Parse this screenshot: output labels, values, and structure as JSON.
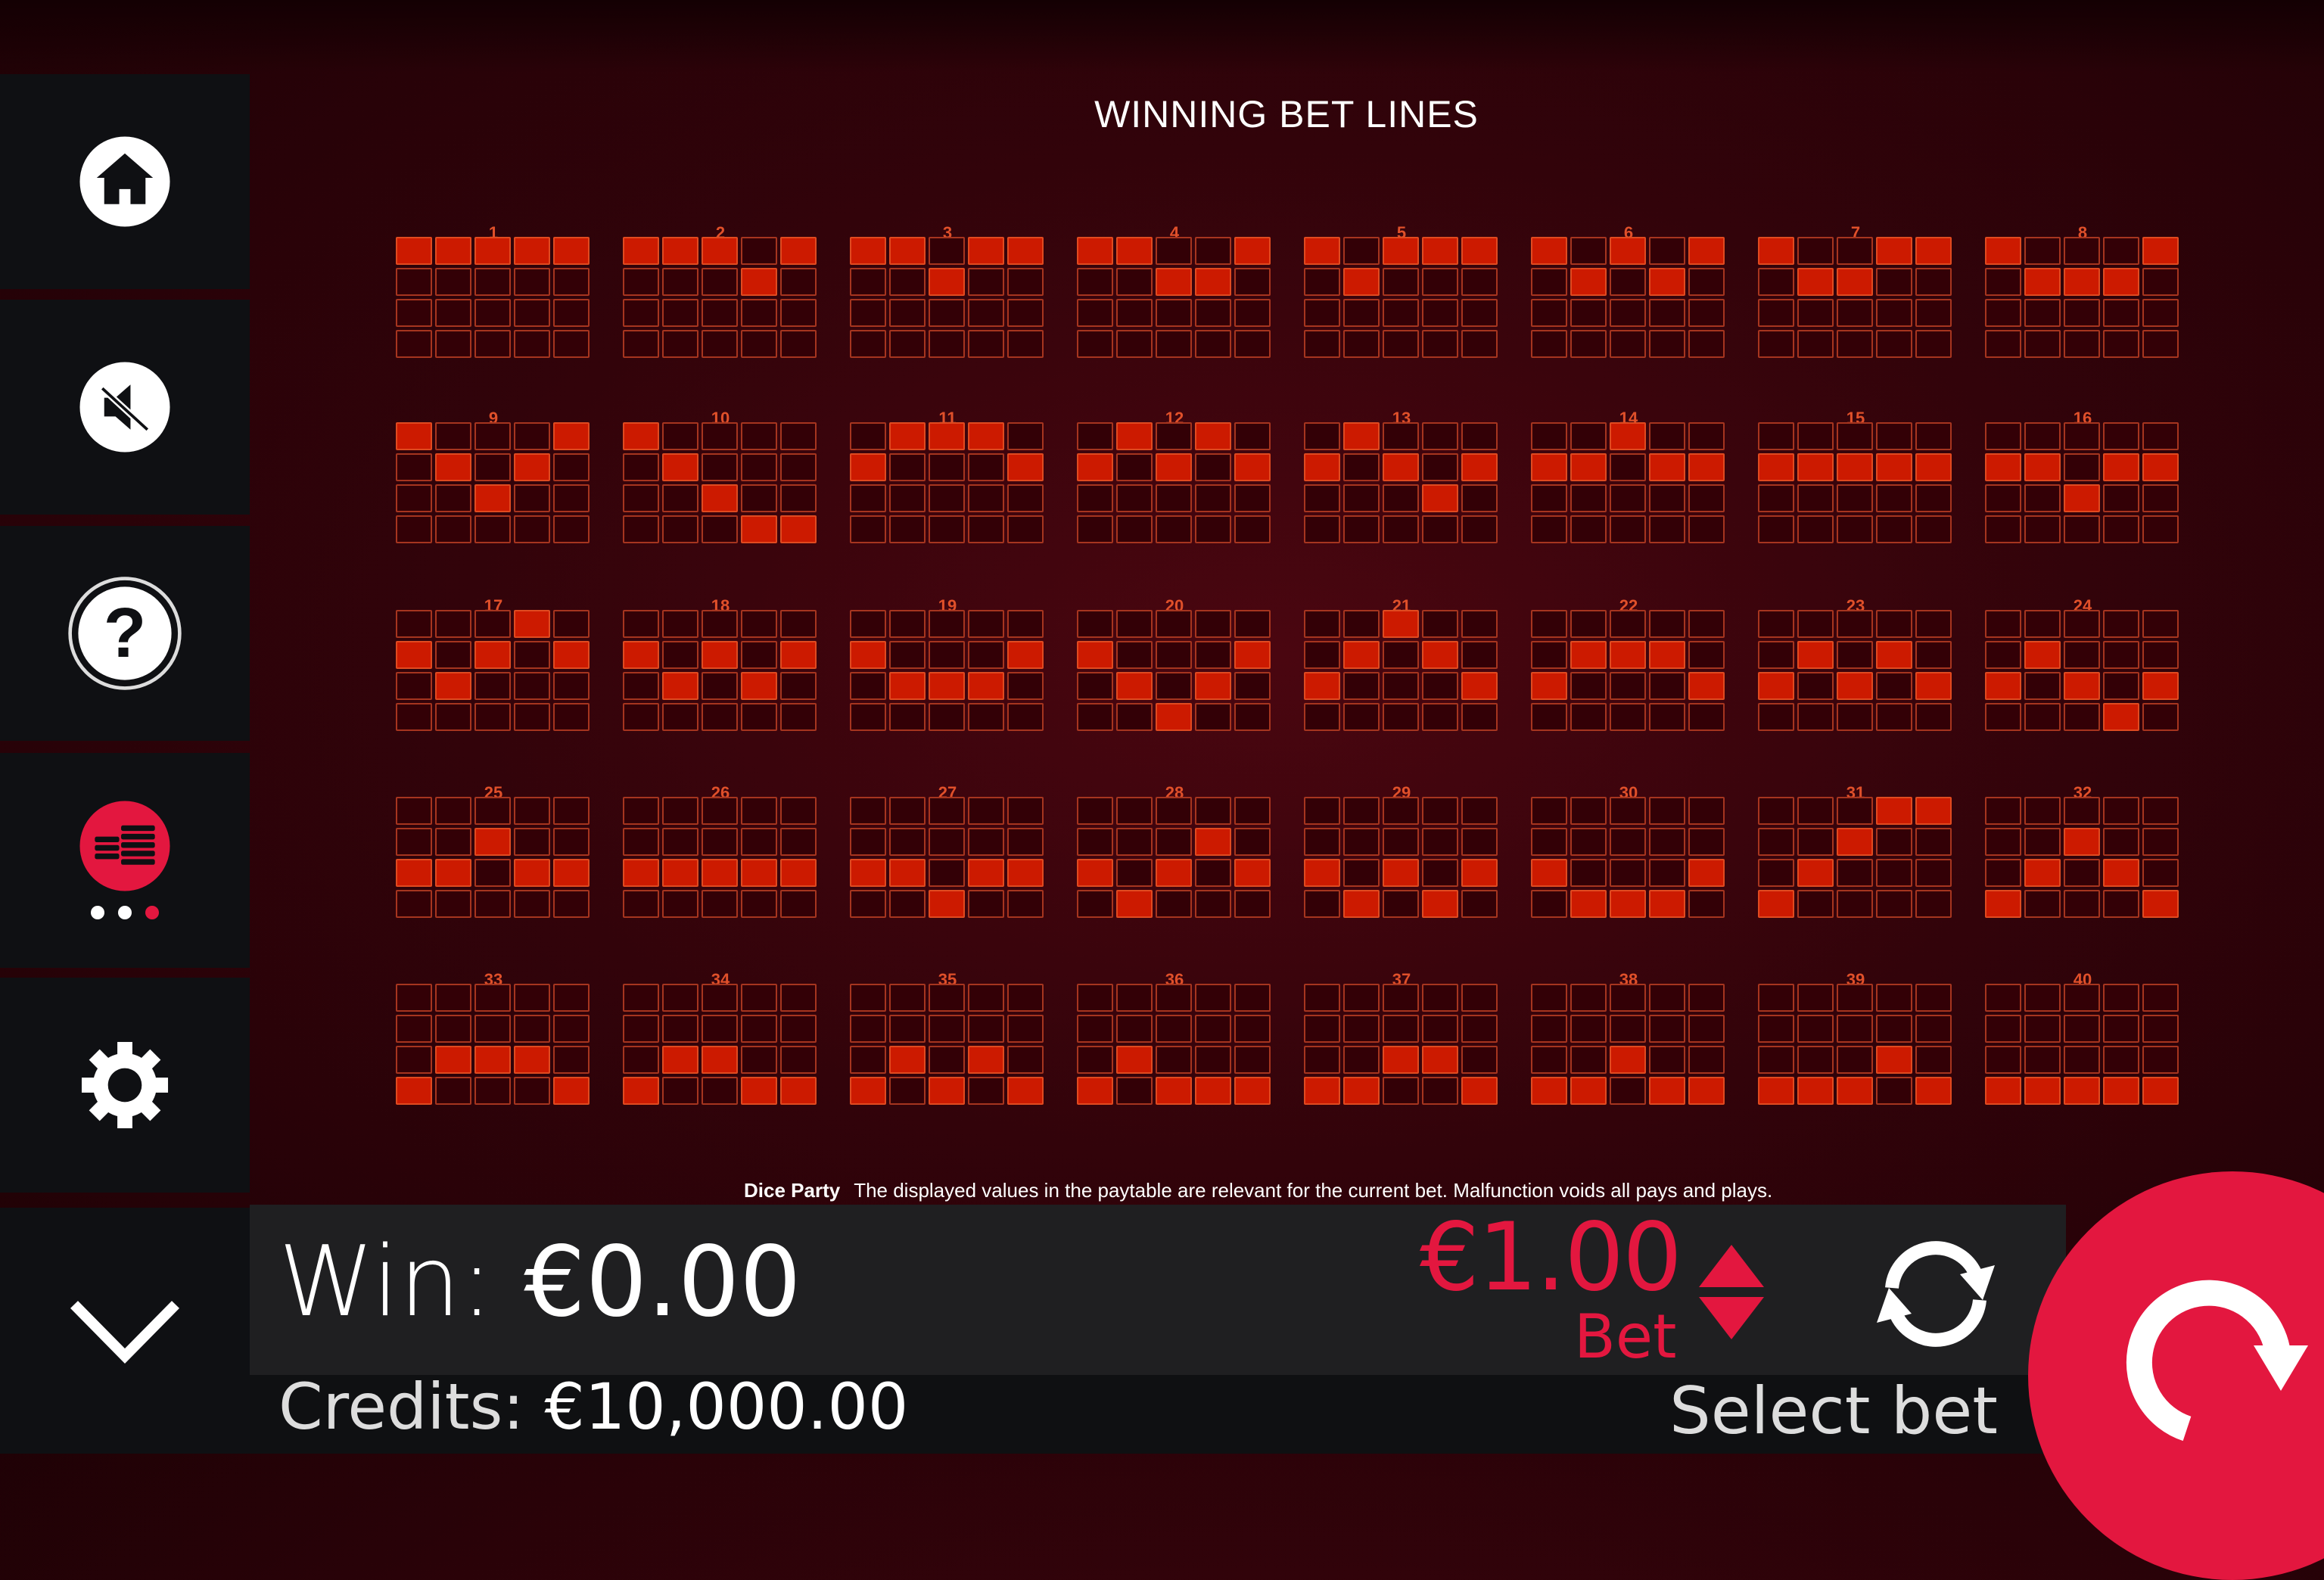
{
  "title": "WINNING BET LINES",
  "sidebar": [
    {
      "icon": "home-icon"
    },
    {
      "icon": "sound-muted-icon"
    },
    {
      "icon": "help-icon"
    },
    {
      "icon": "coins-stack-icon"
    },
    {
      "icon": "gear-icon"
    },
    {
      "icon": "chevron-down-icon"
    }
  ],
  "lines": [
    [
      0,
      0,
      0,
      0,
      0
    ],
    [
      0,
      0,
      0,
      1,
      0
    ],
    [
      0,
      0,
      1,
      0,
      0
    ],
    [
      0,
      0,
      1,
      1,
      0
    ],
    [
      0,
      1,
      0,
      0,
      0
    ],
    [
      0,
      1,
      0,
      1,
      0
    ],
    [
      0,
      1,
      1,
      0,
      0
    ],
    [
      0,
      1,
      1,
      1,
      0
    ],
    [
      0,
      1,
      2,
      1,
      0
    ],
    [
      0,
      1,
      2,
      3,
      3
    ],
    [
      1,
      0,
      0,
      0,
      1
    ],
    [
      1,
      0,
      1,
      0,
      1
    ],
    [
      1,
      0,
      1,
      2,
      1
    ],
    [
      1,
      1,
      0,
      1,
      1
    ],
    [
      1,
      1,
      1,
      1,
      1
    ],
    [
      1,
      1,
      2,
      1,
      1
    ],
    [
      1,
      2,
      1,
      0,
      1
    ],
    [
      1,
      2,
      1,
      2,
      1
    ],
    [
      1,
      2,
      2,
      2,
      1
    ],
    [
      1,
      2,
      3,
      2,
      1
    ],
    [
      2,
      1,
      0,
      1,
      2
    ],
    [
      2,
      1,
      1,
      1,
      2
    ],
    [
      2,
      1,
      2,
      1,
      2
    ],
    [
      2,
      1,
      2,
      3,
      2
    ],
    [
      2,
      2,
      1,
      2,
      2
    ],
    [
      2,
      2,
      2,
      2,
      2
    ],
    [
      2,
      2,
      3,
      2,
      2
    ],
    [
      2,
      3,
      2,
      1,
      2
    ],
    [
      2,
      3,
      2,
      3,
      2
    ],
    [
      2,
      3,
      3,
      3,
      2
    ],
    [
      3,
      2,
      1,
      0,
      0
    ],
    [
      3,
      2,
      1,
      2,
      3
    ],
    [
      3,
      2,
      2,
      2,
      3
    ],
    [
      3,
      2,
      2,
      3,
      3
    ],
    [
      3,
      2,
      3,
      2,
      3
    ],
    [
      3,
      2,
      3,
      3,
      3
    ],
    [
      3,
      3,
      2,
      2,
      3
    ],
    [
      3,
      3,
      2,
      3,
      3
    ],
    [
      3,
      3,
      3,
      2,
      3
    ],
    [
      3,
      3,
      3,
      3,
      3
    ]
  ],
  "footer": {
    "game": "Dice Party",
    "note": "The displayed values in the paytable are relevant for the current bet. Malfunction voids all pays and plays."
  },
  "win": {
    "label": "Win:",
    "value": "€0.00"
  },
  "credits": {
    "label": "Credits:",
    "value": "€10,000.00"
  },
  "bet": {
    "value": "€1.00",
    "label": "Bet"
  },
  "select_bet": "Select bet",
  "colors": {
    "accent": "#e3173f",
    "line_on": "#cc1a00",
    "cell_border": "#a6351f",
    "bar": "#1f1f21"
  }
}
